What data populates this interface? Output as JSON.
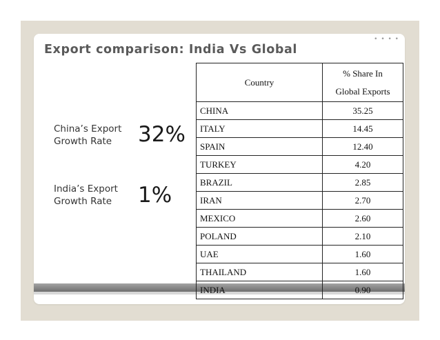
{
  "title": "Export comparison: India Vs Global",
  "stats": [
    {
      "label": "China’s Export Growth Rate",
      "value": "32%"
    },
    {
      "label": "India’s Export Growth Rate",
      "value": "1%"
    }
  ],
  "table": {
    "headers": {
      "country": "Country",
      "share_line1": "% Share In",
      "share_line2": "Global Exports"
    },
    "rows": [
      {
        "country": "CHINA",
        "share": "35.25"
      },
      {
        "country": "ITALY",
        "share": "14.45"
      },
      {
        "country": "SPAIN",
        "share": "12.40"
      },
      {
        "country": "TURKEY",
        "share": "4.20"
      },
      {
        "country": "BRAZIL",
        "share": "2.85"
      },
      {
        "country": "IRAN",
        "share": "2.70"
      },
      {
        "country": "MEXICO",
        "share": "2.60"
      },
      {
        "country": "POLAND",
        "share": "2.10"
      },
      {
        "country": "UAE",
        "share": "1.60"
      },
      {
        "country": "THAILAND",
        "share": "1.60"
      },
      {
        "country": "INDIA",
        "share": "0.90"
      }
    ]
  }
}
